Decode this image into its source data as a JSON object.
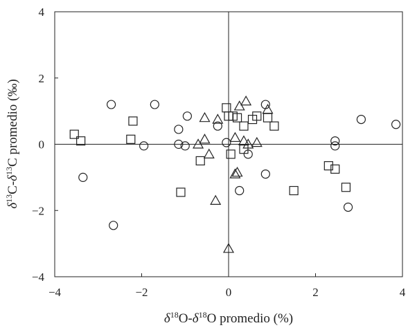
{
  "chart_data": {
    "type": "scatter",
    "xlabel": "δ18O-δ18O promedio (%)",
    "xlabel_parts": {
      "delta1": "δ",
      "sup1": "18",
      "mid": "O-",
      "delta2": "δ",
      "sup2": "18",
      "tail": "O promedio (%)"
    },
    "ylabel": "δ13C-δ13C promedio (‰)",
    "ylabel_parts": {
      "delta1": "δ",
      "sup1": "13",
      "mid": "C-",
      "delta2": "δ",
      "sup2": "13",
      "tail": "C promedio (‰)"
    },
    "xlim": [
      -4,
      4
    ],
    "ylim": [
      -4,
      4
    ],
    "xticks": [
      "−4",
      "−2",
      "0",
      "2",
      "4"
    ],
    "yticks": [
      "4",
      "2",
      "0",
      "−2",
      "−4"
    ],
    "grid": false,
    "reference_lines": {
      "x": 0,
      "y": 0
    },
    "marker_color": "#222222",
    "series": [
      {
        "marker": "circle",
        "points": [
          [
            -2.7,
            1.2
          ],
          [
            -1.7,
            1.2
          ],
          [
            -0.95,
            0.85
          ],
          [
            -1.15,
            0.45
          ],
          [
            -1.15,
            0.0
          ],
          [
            -1.0,
            -0.05
          ],
          [
            -1.95,
            -0.05
          ],
          [
            -0.05,
            0.05
          ],
          [
            -0.25,
            0.55
          ],
          [
            -3.35,
            -1.0
          ],
          [
            -2.65,
            -2.45
          ],
          [
            0.25,
            -1.4
          ],
          [
            0.45,
            -0.3
          ],
          [
            0.85,
            -0.9
          ],
          [
            0.85,
            1.2
          ],
          [
            2.45,
            0.1
          ],
          [
            2.45,
            -0.05
          ],
          [
            3.05,
            0.75
          ],
          [
            3.85,
            0.6
          ],
          [
            2.75,
            -1.9
          ]
        ]
      },
      {
        "marker": "square",
        "points": [
          [
            -3.55,
            0.3
          ],
          [
            -3.4,
            0.1
          ],
          [
            -2.25,
            0.15
          ],
          [
            -2.2,
            0.7
          ],
          [
            -0.65,
            -0.5
          ],
          [
            -1.1,
            -1.45
          ],
          [
            -0.05,
            1.1
          ],
          [
            0.0,
            0.85
          ],
          [
            0.1,
            0.85
          ],
          [
            0.2,
            0.8
          ],
          [
            0.05,
            -0.3
          ],
          [
            0.35,
            0.55
          ],
          [
            0.35,
            -0.15
          ],
          [
            0.55,
            0.75
          ],
          [
            0.65,
            0.85
          ],
          [
            0.9,
            0.8
          ],
          [
            1.05,
            0.55
          ],
          [
            1.5,
            -1.4
          ],
          [
            2.3,
            -0.65
          ],
          [
            2.45,
            -0.75
          ],
          [
            2.7,
            -1.3
          ]
        ]
      },
      {
        "marker": "triangle",
        "points": [
          [
            -0.55,
            0.8
          ],
          [
            -0.7,
            0.0
          ],
          [
            -0.55,
            0.15
          ],
          [
            -0.45,
            -0.3
          ],
          [
            -0.25,
            0.75
          ],
          [
            -0.3,
            -1.7
          ],
          [
            0.15,
            0.2
          ],
          [
            0.25,
            1.15
          ],
          [
            0.4,
            1.3
          ],
          [
            0.35,
            0.1
          ],
          [
            0.45,
            0.0
          ],
          [
            0.65,
            0.05
          ],
          [
            0.9,
            1.05
          ],
          [
            0.15,
            -0.9
          ],
          [
            0.2,
            -0.85
          ],
          [
            0.0,
            -3.15
          ]
        ]
      }
    ]
  }
}
